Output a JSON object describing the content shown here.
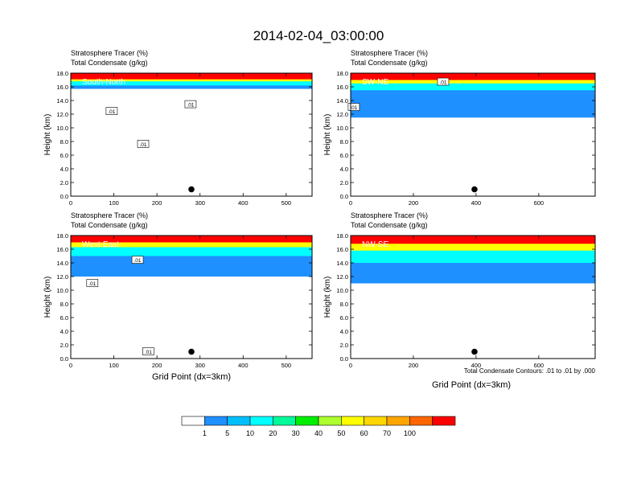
{
  "figure": {
    "title": "2014-02-04_03:00:00",
    "footer_note": "Total Condensate Contours: .01 to .01 by .000",
    "xlabel": "Grid Point (dx=3km)"
  },
  "colorbar": {
    "labels": [
      "1",
      "5",
      "10",
      "20",
      "30",
      "40",
      "50",
      "60",
      "70",
      "100"
    ],
    "colors": [
      "#ffffff",
      "#1e90ff",
      "#00bfff",
      "#00ffff",
      "#00fa9a",
      "#00ee00",
      "#adff2f",
      "#ffff00",
      "#ffd700",
      "#ffa500",
      "#ff6600",
      "#ff0000"
    ]
  },
  "chart_data": [
    {
      "type": "heatmap",
      "panel_label": "South-North",
      "title_line1": "Stratosphere Tracer   (%)",
      "title_line2": "Total Condensate   (g/kg)",
      "ylabel": "Height (km)",
      "xlabel": "",
      "xlim": [
        0,
        560
      ],
      "ylim": [
        0,
        18
      ],
      "xticks": [
        0,
        100,
        200,
        300,
        400,
        500
      ],
      "yticks": [
        0.0,
        2.0,
        4.0,
        6.0,
        8.0,
        10.0,
        12.0,
        14.0,
        16.0,
        18.0
      ],
      "marker": {
        "x": 280,
        "y": 1.0
      },
      "contour_labels": [
        {
          "x": 95,
          "y": 12.4,
          "text": ".01"
        },
        {
          "x": 168,
          "y": 7.6,
          "text": ".01"
        },
        {
          "x": 278,
          "y": 13.4,
          "text": ".01"
        }
      ],
      "layers": [
        {
          "level": "1",
          "xs": [
            0,
            560
          ],
          "top": 18,
          "bottom": 15.7
        },
        {
          "level": "5",
          "xs": [
            0,
            560
          ],
          "top": 18,
          "bottom": 16.2
        },
        {
          "level": "50",
          "xs": [
            0,
            560
          ],
          "top": 18,
          "bottom": 16.8
        },
        {
          "level": "100",
          "xs": [
            0,
            560
          ],
          "top": 18,
          "bottom": 17.1
        }
      ]
    },
    {
      "type": "heatmap",
      "panel_label": "SW-NE",
      "title_line1": "Stratosphere Tracer   (%)",
      "title_line2": "Total Condensate   (g/kg)",
      "ylabel": "Height (km)",
      "xlabel": "",
      "xlim": [
        0,
        780
      ],
      "ylim": [
        0,
        18
      ],
      "xticks": [
        0,
        200,
        400,
        600
      ],
      "yticks": [
        0.0,
        2.0,
        4.0,
        6.0,
        8.0,
        10.0,
        12.0,
        14.0,
        16.0,
        18.0
      ],
      "marker": {
        "x": 395,
        "y": 1.0
      },
      "contour_labels": [
        {
          "x": 10,
          "y": 13.0,
          "text": ".01"
        },
        {
          "x": 295,
          "y": 16.7,
          "text": ".01"
        }
      ],
      "layers": [
        {
          "level": "1",
          "xs": [
            0,
            780
          ],
          "top": 18,
          "bottom": 11.5
        },
        {
          "level": "5",
          "xs": [
            0,
            780
          ],
          "top": 18,
          "bottom": 15.5
        },
        {
          "level": "50",
          "xs": [
            0,
            780
          ],
          "top": 18,
          "bottom": 16.5
        },
        {
          "level": "100",
          "xs": [
            0,
            780
          ],
          "top": 18,
          "bottom": 17.0
        }
      ]
    },
    {
      "type": "heatmap",
      "panel_label": "West-East",
      "title_line1": "Stratosphere Tracer   (%)",
      "title_line2": "Total Condensate   (g/kg)",
      "ylabel": "Height (km)",
      "xlabel": "Grid Point (dx=3km)",
      "xlim": [
        0,
        560
      ],
      "ylim": [
        0,
        18
      ],
      "xticks": [
        0,
        100,
        200,
        300,
        400,
        500
      ],
      "yticks": [
        0.0,
        2.0,
        4.0,
        6.0,
        8.0,
        10.0,
        12.0,
        14.0,
        16.0,
        18.0
      ],
      "marker": {
        "x": 280,
        "y": 1.0
      },
      "contour_labels": [
        {
          "x": 50,
          "y": 11.0,
          "text": ".01"
        },
        {
          "x": 155,
          "y": 14.4,
          "text": ".01"
        },
        {
          "x": 180,
          "y": 1.0,
          "text": ".01"
        }
      ],
      "layers": [
        {
          "level": "1",
          "xs": [
            0,
            560
          ],
          "top": 18,
          "bottom": 12.0
        },
        {
          "level": "5",
          "xs": [
            0,
            560
          ],
          "top": 18,
          "bottom": 15.0
        },
        {
          "level": "50",
          "xs": [
            0,
            560
          ],
          "top": 18,
          "bottom": 16.3
        },
        {
          "level": "100",
          "xs": [
            0,
            560
          ],
          "top": 18,
          "bottom": 17.0
        }
      ]
    },
    {
      "type": "heatmap",
      "panel_label": "NW-SE",
      "title_line1": "Stratosphere Tracer   (%)",
      "title_line2": "Total Condensate   (g/kg)",
      "ylabel": "Height (km)",
      "xlabel": "",
      "xlim": [
        0,
        780
      ],
      "ylim": [
        0,
        18
      ],
      "xticks": [
        0,
        200,
        400,
        600
      ],
      "yticks": [
        0.0,
        2.0,
        4.0,
        6.0,
        8.0,
        10.0,
        12.0,
        14.0,
        16.0,
        18.0
      ],
      "marker": {
        "x": 395,
        "y": 1.0
      },
      "contour_labels": [],
      "layers": [
        {
          "level": "1",
          "xs": [
            0,
            780
          ],
          "top": 18,
          "bottom": 11.0
        },
        {
          "level": "5",
          "xs": [
            0,
            780
          ],
          "top": 18,
          "bottom": 14.0
        },
        {
          "level": "50",
          "xs": [
            0,
            780
          ],
          "top": 18,
          "bottom": 15.8
        },
        {
          "level": "100",
          "xs": [
            0,
            780
          ],
          "top": 18,
          "bottom": 16.8
        }
      ]
    }
  ]
}
